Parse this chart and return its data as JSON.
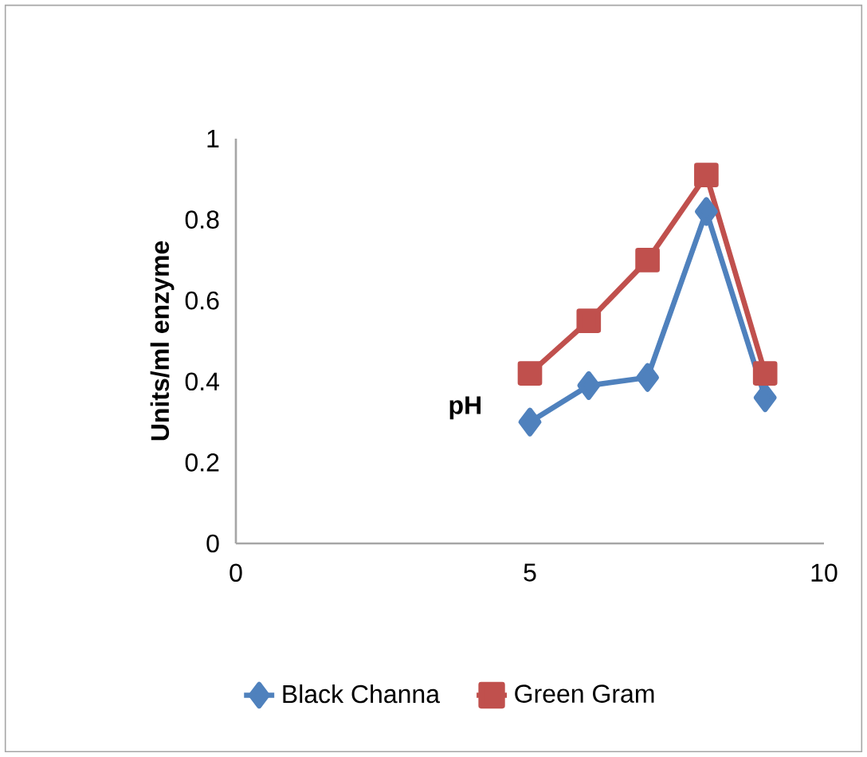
{
  "chart_data": {
    "type": "line",
    "xlabel": "pH",
    "ylabel": "Units/ml enzyme",
    "xlim": [
      0,
      10
    ],
    "xticks": [
      0,
      5,
      10
    ],
    "ylim": [
      0,
      1
    ],
    "yticks": [
      0,
      0.2,
      0.4,
      0.6,
      0.8,
      1
    ],
    "legend": "bottom",
    "grid": false,
    "series": [
      {
        "name": "Black Channa",
        "color": "#4f81bd",
        "marker": "diamond",
        "x": [
          5,
          6,
          7,
          8,
          9
        ],
        "values": [
          0.3,
          0.39,
          0.41,
          0.82,
          0.36
        ]
      },
      {
        "name": "Green Gram",
        "color": "#c0504d",
        "marker": "square",
        "x": [
          5,
          6,
          7,
          8,
          9
        ],
        "values": [
          0.42,
          0.55,
          0.7,
          0.91,
          0.42
        ]
      }
    ]
  }
}
